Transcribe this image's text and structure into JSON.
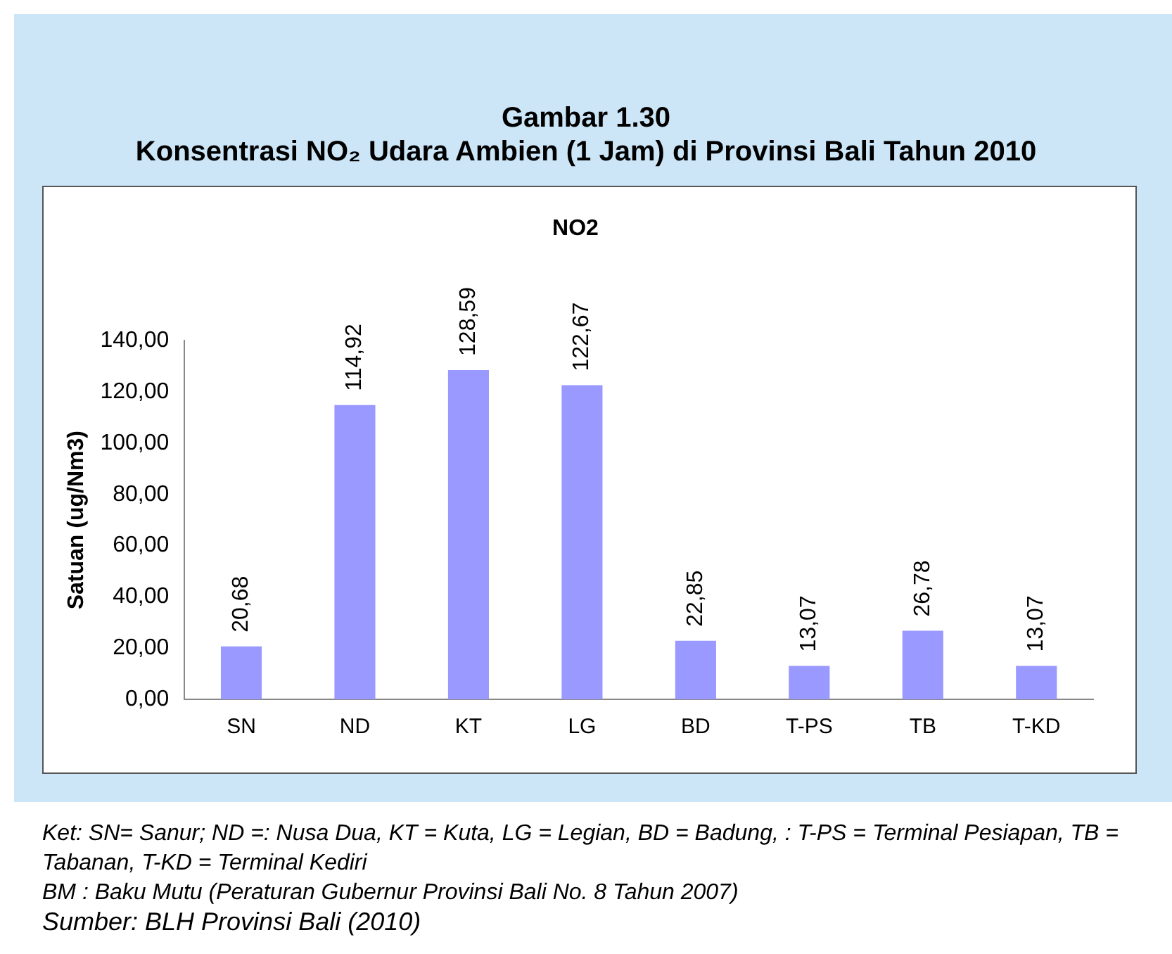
{
  "chart_data": {
    "type": "bar",
    "title": "Gambar 1.30\nKonsentrasi NO₂ Udara Ambien (1 Jam) di Provinsi Bali Tahun 2010",
    "subtitle": "NO2",
    "ylabel": "Satuan (ug/Nm3)",
    "categories": [
      "SN",
      "ND",
      "KT",
      "LG",
      "BD",
      "T-PS",
      "TB",
      "T-KD"
    ],
    "values": [
      20.68,
      114.92,
      128.59,
      122.67,
      22.85,
      13.07,
      26.78,
      13.07
    ],
    "value_labels": [
      "20,68",
      "114,92",
      "128,59",
      "122,67",
      "22,85",
      "13,07",
      "26,78",
      "13,07"
    ],
    "color": "#9999ff",
    "ylim": [
      0,
      140
    ],
    "yticks": [
      {
        "value": 0,
        "label": "0,00"
      },
      {
        "value": 20,
        "label": "20,00"
      },
      {
        "value": 40,
        "label": "40,00"
      },
      {
        "value": 60,
        "label": "60,00"
      },
      {
        "value": 80,
        "label": "80,00"
      },
      {
        "value": 100,
        "label": "100,00"
      },
      {
        "value": 120,
        "label": "120,00"
      },
      {
        "value": 140,
        "label": "140,00"
      }
    ],
    "grid": false,
    "legend": false,
    "annotations": [
      "Ket: SN= Sanur; ND =: Nusa Dua, KT =  Kuta, LG = Legian, BD =  Badung,  : T-PS = Terminal Pesiapan, TB = Tabanan, T-KD = Terminal Kediri",
      "BM : Baku Mutu (Peraturan Gubernur Provinsi Bali No. 8 Tahun 2007)",
      "Sumber: BLH Provinsi Bali (2010)"
    ]
  }
}
